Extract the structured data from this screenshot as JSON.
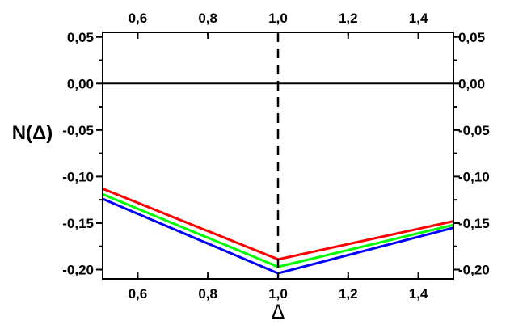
{
  "chart_data": {
    "type": "line",
    "title": "",
    "xlabel": "Δ",
    "ylabel": "N(Δ)",
    "xlim": [
      0.5,
      1.5
    ],
    "ylim": [
      -0.21,
      0.055
    ],
    "x_ticks": [
      0.6,
      0.8,
      1.0,
      1.2,
      1.4
    ],
    "x_tick_labels": [
      "0,6",
      "0,8",
      "1,0",
      "1,2",
      "1,4"
    ],
    "y_ticks": [
      0.05,
      0.0,
      -0.05,
      -0.1,
      -0.15,
      -0.2
    ],
    "y_tick_labels": [
      "0,05",
      "0,00",
      "-0,05",
      "-0,10",
      "-0,15",
      "-0,20"
    ],
    "grid": false,
    "legend": "none",
    "reference_lines": [
      {
        "orientation": "horizontal",
        "value": 0.0,
        "style": "solid",
        "color": "#000000"
      },
      {
        "orientation": "vertical",
        "value": 1.0,
        "style": "dashed",
        "color": "#000000"
      }
    ],
    "series": [
      {
        "color": "#ff0000",
        "x": [
          0.5,
          1.0,
          1.5
        ],
        "y": [
          -0.113,
          -0.189,
          -0.148
        ]
      },
      {
        "color": "#00ff00",
        "x": [
          0.5,
          1.0,
          1.5
        ],
        "y": [
          -0.119,
          -0.197,
          -0.152
        ]
      },
      {
        "color": "#0000ff",
        "x": [
          0.5,
          1.0,
          1.5
        ],
        "y": [
          -0.124,
          -0.204,
          -0.155
        ]
      }
    ]
  }
}
